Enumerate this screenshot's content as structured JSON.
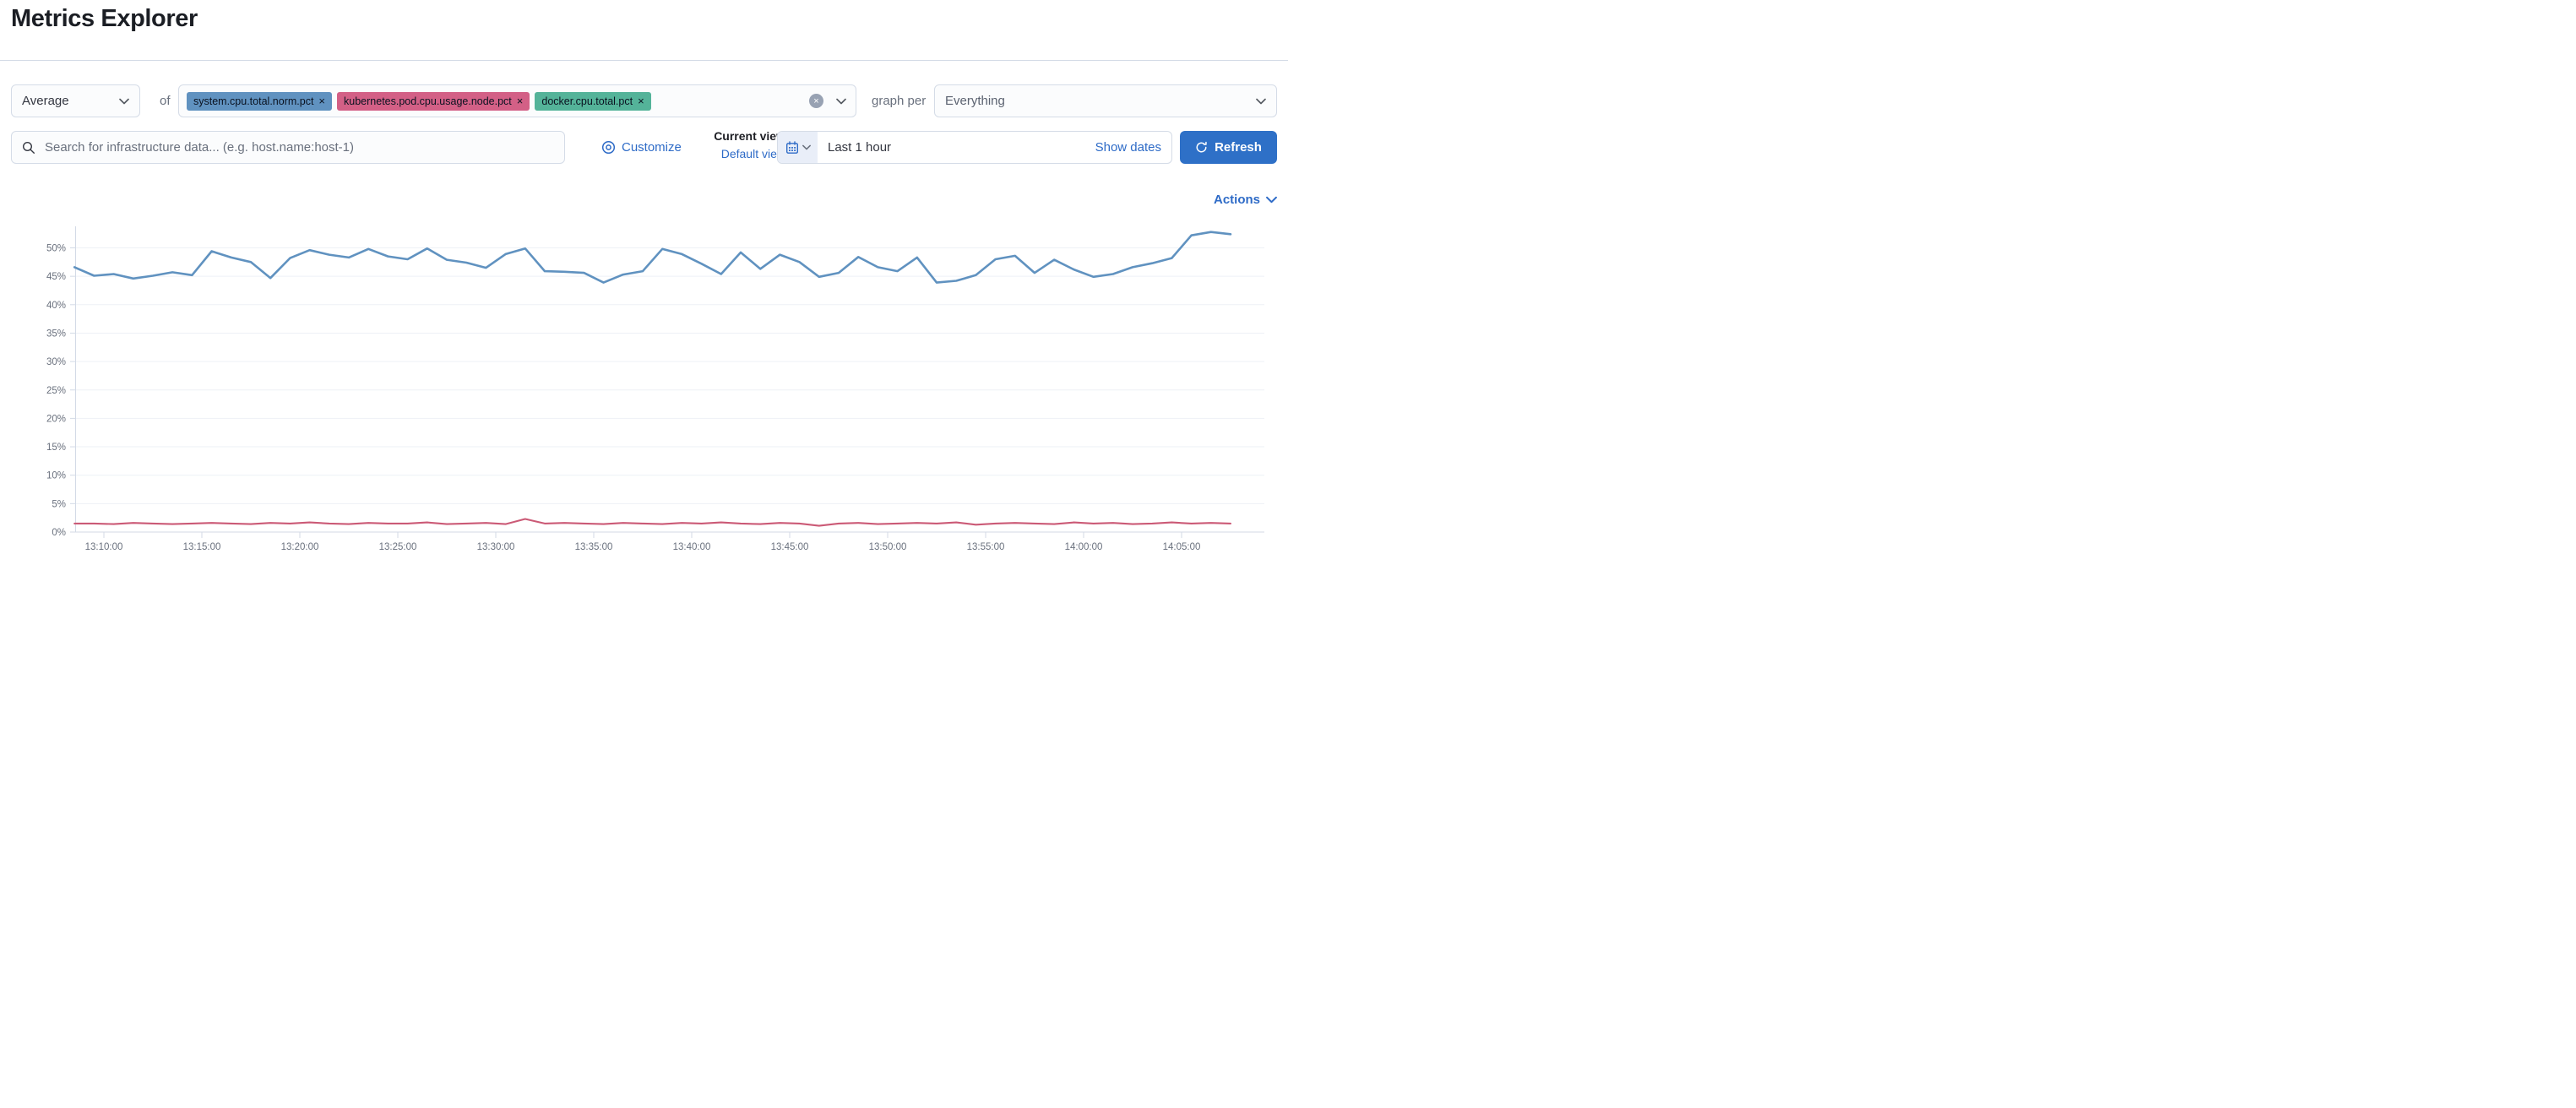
{
  "page": {
    "title": "Metrics Explorer"
  },
  "controls": {
    "aggregation": {
      "selected": "Average",
      "of_label": "of"
    },
    "metrics": [
      {
        "label": "system.cpu.total.norm.pct",
        "color": "#6092C0"
      },
      {
        "label": "kubernetes.pod.cpu.usage.node.pct",
        "color": "#D36086"
      },
      {
        "label": "docker.cpu.total.pct",
        "color": "#54B399"
      }
    ],
    "graph_per_label": "graph per",
    "graph_per_selected": "Everything"
  },
  "search": {
    "placeholder": "Search for infrastructure data... (e.g. host.name:host-1)"
  },
  "view": {
    "customize_label": "Customize",
    "current_view_label": "Current view",
    "default_view_label": "Default view"
  },
  "datepicker": {
    "time_range": "Last 1 hour",
    "show_dates_label": "Show dates"
  },
  "refresh_label": "Refresh",
  "actions_label": "Actions",
  "colors": {
    "primary_button": "#2E70C7",
    "link": "#2E6BC7",
    "badge_blue": "#6092C0",
    "badge_pink": "#D36086",
    "badge_green": "#54B399",
    "series_blue": "#6092C0",
    "series_rose": "#CB5A76",
    "axis": "#D3DAE6",
    "tick_label": "#69707D"
  },
  "chart_data": {
    "type": "line",
    "title": "",
    "xlabel": "",
    "ylabel": "",
    "ylim": [
      0,
      55
    ],
    "grid": true,
    "legend": false,
    "ytick_values": [
      0,
      5,
      10,
      15,
      20,
      25,
      30,
      35,
      40,
      45,
      50
    ],
    "yticks": [
      "0%",
      "5%",
      "10%",
      "15%",
      "20%",
      "25%",
      "30%",
      "35%",
      "40%",
      "45%",
      "50%"
    ],
    "xticks": [
      "13:10:00",
      "13:15:00",
      "13:20:00",
      "13:25:00",
      "13:30:00",
      "13:35:00",
      "13:40:00",
      "13:45:00",
      "13:50:00",
      "13:55:00",
      "14:00:00",
      "14:05:00"
    ],
    "tick_interval_min": 5,
    "x0_min": -1.5,
    "dx_min": 1,
    "series": [
      {
        "name": "system.cpu.total.norm.pct",
        "color": "#6092C0",
        "values": [
          46.6,
          45.1,
          45.4,
          44.6,
          45.1,
          45.7,
          45.2,
          49.4,
          48.3,
          47.5,
          44.7,
          48.2,
          49.6,
          48.8,
          48.3,
          49.8,
          48.5,
          48.0,
          49.9,
          47.9,
          47.4,
          46.5,
          48.9,
          49.9,
          45.9,
          45.8,
          45.6,
          43.9,
          45.3,
          45.9,
          49.8,
          48.9,
          47.2,
          45.4,
          49.2,
          46.3,
          48.8,
          47.5,
          44.9,
          45.6,
          48.4,
          46.6,
          45.9,
          48.3,
          43.9,
          44.2,
          45.2,
          48.0,
          48.6,
          45.6,
          47.9,
          46.2,
          44.9,
          45.4,
          46.6,
          47.3,
          48.2,
          52.2,
          52.8,
          52.4
        ]
      },
      {
        "name": "kubernetes.pod.cpu.usage.node.pct",
        "color": "#CB5A76",
        "values": [
          1.5,
          1.5,
          1.4,
          1.6,
          1.5,
          1.4,
          1.5,
          1.6,
          1.5,
          1.4,
          1.6,
          1.5,
          1.7,
          1.5,
          1.4,
          1.6,
          1.5,
          1.5,
          1.7,
          1.4,
          1.5,
          1.6,
          1.4,
          2.3,
          1.5,
          1.6,
          1.5,
          1.4,
          1.6,
          1.5,
          1.4,
          1.6,
          1.5,
          1.7,
          1.5,
          1.4,
          1.6,
          1.5,
          1.1,
          1.5,
          1.6,
          1.4,
          1.5,
          1.6,
          1.5,
          1.7,
          1.3,
          1.5,
          1.6,
          1.5,
          1.4,
          1.7,
          1.5,
          1.6,
          1.4,
          1.5,
          1.7,
          1.5,
          1.6,
          1.5
        ]
      }
    ]
  }
}
